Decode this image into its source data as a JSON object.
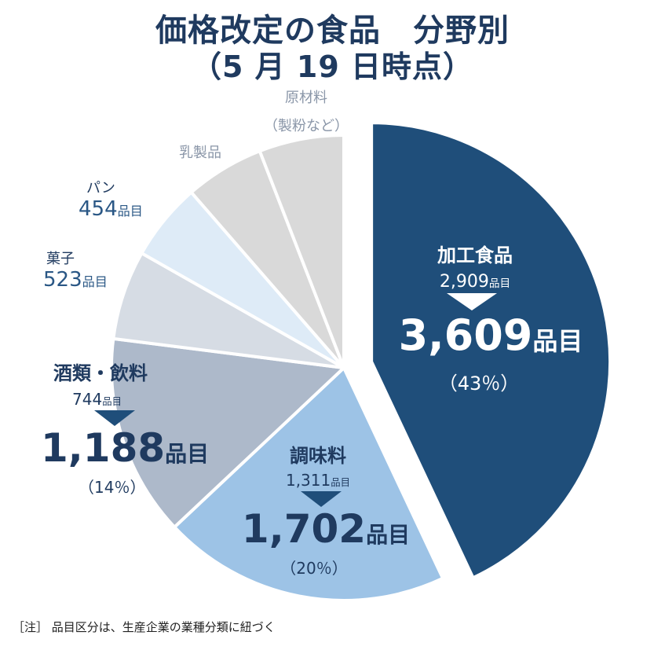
{
  "title_line1": "価格改定の食品　分野別",
  "title_line2": "（5 月 19 日時点）",
  "note": "［注］ 品目区分は、生産企業の業種分類に紐づく",
  "chart_data": {
    "type": "pie",
    "title": "価格改定の食品　分野別（5 月 19 日時点）",
    "unit": "品目",
    "slices": [
      {
        "name": "加工食品",
        "prev": "2,909",
        "value": "3,609",
        "pct": "（43％）",
        "share": 43,
        "exploded": true,
        "color": "#1f4e7a"
      },
      {
        "name": "調味料",
        "prev": "1,311",
        "value": "1,702",
        "pct": "（20％）",
        "share": 20,
        "color": "#9dc3e6"
      },
      {
        "name": "酒類・飲料",
        "prev": "744",
        "value": "1,188",
        "pct": "（14％）",
        "share": 14,
        "color": "#adb9ca"
      },
      {
        "name": "菓子",
        "value": "523",
        "share": 6.2,
        "color": "#d6dce4"
      },
      {
        "name": "パン",
        "value": "454",
        "share": 5.4,
        "color": "#deebf7"
      },
      {
        "name": "乳製品",
        "share": 5.5,
        "color": "#d9d9d9"
      },
      {
        "name": "原材料（製粉など）",
        "share": 5.9,
        "color": "#d9d9d9"
      }
    ]
  },
  "labels": {
    "kako": {
      "name": "加工食品",
      "prev": "2,909",
      "unit": "品目",
      "value": "3,609",
      "pct": "（43％）"
    },
    "chomi": {
      "name": "調味料",
      "prev": "1,311",
      "unit": "品目",
      "value": "1,702",
      "pct": "（20％）"
    },
    "sake": {
      "name": "酒類・飲料",
      "prev": "744",
      "unit": "品目",
      "value": "1,188",
      "pct": "（14％）"
    },
    "kashi": {
      "name": "菓子",
      "value": "523",
      "unit": "品目"
    },
    "pan": {
      "name": "パン",
      "value": "454",
      "unit": "品目"
    },
    "nyu": {
      "name": "乳製品"
    },
    "gen": {
      "name1": "原材料",
      "name2": "（製粉など）"
    }
  }
}
